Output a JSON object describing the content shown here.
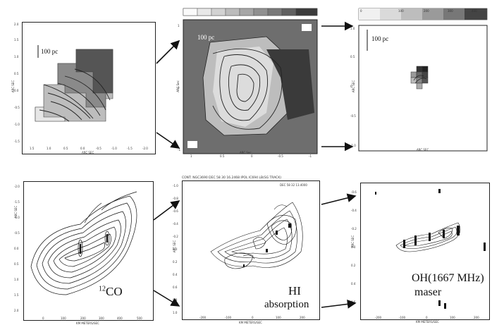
{
  "top": {
    "left": {
      "scale_label": "100 pc",
      "xlabel": "ARC SEC",
      "ylabel": "ARC SEC",
      "xticks": [
        "1.5",
        "1.0",
        "0.5",
        "0.0",
        "-0.5",
        "-1.0",
        "-1.5",
        "-2.0"
      ],
      "yticks": [
        "2.0",
        "1.5",
        "1.0",
        "0.5",
        "0.0",
        "-0.5",
        "-1.0",
        "-1.5"
      ]
    },
    "middle": {
      "scale_label": "100 pc",
      "xlabel": "ARC Sec",
      "ylabel": "ARC Sec",
      "xticks": [
        "1",
        "0.5",
        "0",
        "-0.5",
        "-1"
      ],
      "yticks": [
        "1",
        "0",
        "-1"
      ]
    },
    "right": {
      "scale_label": "100 pc",
      "xlabel": "ARC SEC",
      "ylabel": "ARC SEC",
      "colorbar_ticks": [
        "0",
        "100",
        "200",
        "300",
        "400"
      ],
      "yticks": [
        "1.0",
        "0.5",
        "0",
        "-0.5",
        "-1.0"
      ]
    }
  },
  "bottom": {
    "left": {
      "label_sup": "12",
      "label": "CO",
      "xlabel": "KM METERS/SEC",
      "ylabel": "ARC SEC",
      "xticks": [
        "0",
        "100",
        "200",
        "300",
        "400",
        "500"
      ],
      "yticks": [
        "-2.0",
        "-1.5",
        "-1.0",
        "-0.5",
        "0.0",
        "0.5",
        "1.0",
        "1.5",
        "2.0"
      ]
    },
    "middle": {
      "header": "CONT: NGC3690 DEC 58 30 16.2468 IPOL IC694 LB(SG TRACK)",
      "corner": "DEC 58 32 13.4000",
      "label_line1": "HI",
      "label_line2": "absorption",
      "xlabel": "KM METERS/SEC",
      "ylabel": "ARC SEC",
      "xticks": [
        "-200",
        "-100",
        "0",
        "100",
        "200"
      ],
      "yticks": [
        "-1.0",
        "-0.8",
        "-0.6",
        "-0.4",
        "-0.2",
        "0.0",
        "0.2",
        "0.4",
        "0.6",
        "0.8",
        "1.0"
      ]
    },
    "right": {
      "label_line1": "OH(1667 MHz)",
      "label_line2": "maser",
      "xlabel": "KM METERS/SEC",
      "ylabel": "ARC SEC",
      "xticks": [
        "-200",
        "-100",
        "0",
        "100",
        "200"
      ],
      "yticks": [
        "-0.6",
        "-0.4",
        "-0.2",
        "0.0",
        "0.2",
        "0.4",
        "0.6"
      ]
    }
  }
}
